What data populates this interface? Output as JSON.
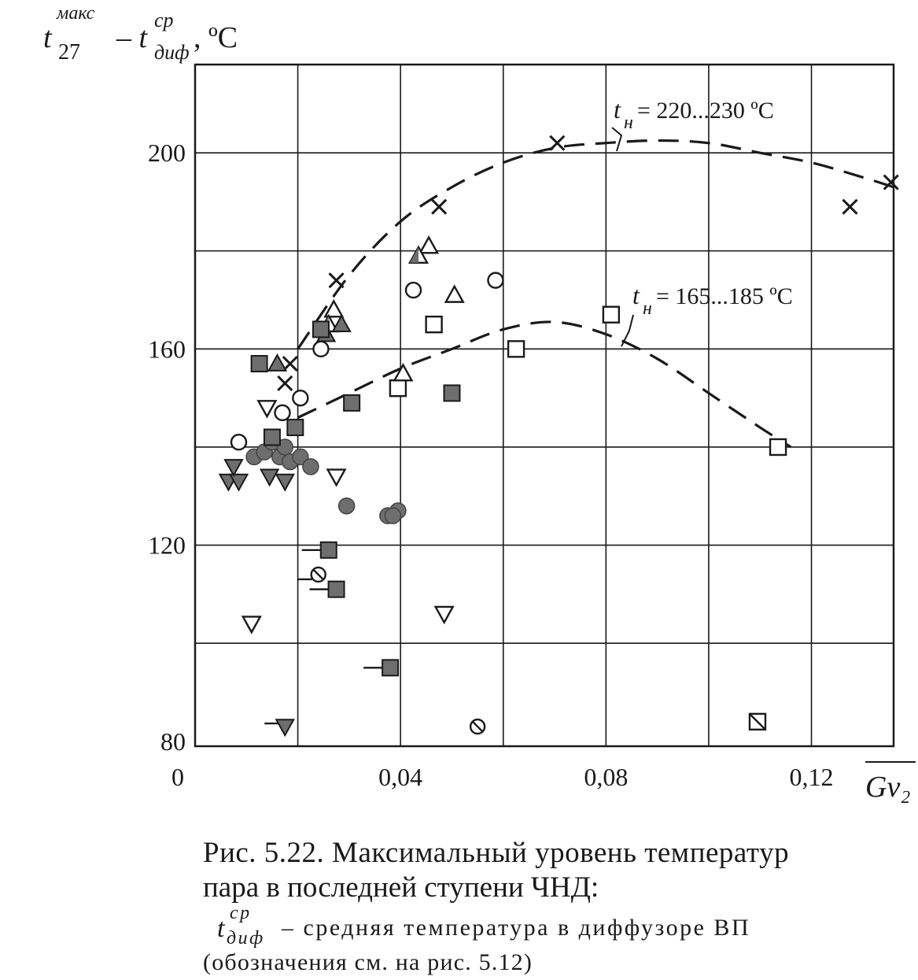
{
  "chart_data": {
    "type": "scatter",
    "ylabel": {
      "base": "t",
      "sub": "27",
      "sup": "макс",
      "minus": "– t",
      "sub2": "диф",
      "sup2": "ср",
      "unit": ", ºС"
    },
    "xlabel": "Gv₂",
    "origin_label": "0",
    "xlim": [
      0,
      0.136
    ],
    "ylim": [
      79,
      218
    ],
    "x_ticks": [
      {
        "v": 0.04,
        "label": "0,04"
      },
      {
        "v": 0.08,
        "label": "0,08"
      },
      {
        "v": 0.12,
        "label": "0,12"
      }
    ],
    "y_ticks": [
      {
        "v": 80,
        "label": "80"
      },
      {
        "v": 120,
        "label": "120"
      },
      {
        "v": 160,
        "label": "160"
      },
      {
        "v": 200,
        "label": "200"
      }
    ],
    "x_grid": [
      0.02,
      0.04,
      0.06,
      0.08,
      0.1,
      0.12
    ],
    "y_grid": [
      100,
      120,
      140,
      160,
      180,
      200
    ],
    "curves": [
      {
        "label": "t_н = 220...230 ºС",
        "label_parts": {
          "t": "t",
          "sub": "н",
          "rest": " = 220...230 ºС"
        },
        "x": [
          0.02,
          0.03,
          0.04,
          0.05,
          0.06,
          0.07,
          0.08,
          0.09,
          0.1,
          0.11,
          0.12,
          0.13,
          0.136
        ],
        "y": [
          160,
          175,
          186,
          193,
          198,
          201,
          202,
          202.5,
          202,
          200,
          198,
          195,
          193
        ]
      },
      {
        "label": "t_н = 165...185 ºС",
        "label_parts": {
          "t": "t",
          "sub": "н",
          "rest": " = 165...185 ºС"
        },
        "x": [
          0.02,
          0.03,
          0.04,
          0.05,
          0.06,
          0.07,
          0.08,
          0.09,
          0.1,
          0.11,
          0.116
        ],
        "y": [
          146,
          151,
          156,
          160,
          164,
          165.5,
          163,
          158,
          151,
          144,
          140
        ]
      }
    ],
    "points": [
      {
        "m": "x",
        "x": 0.0175,
        "y": 153
      },
      {
        "m": "x",
        "x": 0.0185,
        "y": 157
      },
      {
        "m": "x",
        "x": 0.0275,
        "y": 174
      },
      {
        "m": "x",
        "x": 0.0475,
        "y": 189
      },
      {
        "m": "x",
        "x": 0.0705,
        "y": 202
      },
      {
        "m": "x",
        "x": 0.1275,
        "y": 189
      },
      {
        "m": "x",
        "x": 0.1355,
        "y": 194
      },
      {
        "m": "o",
        "x": 0.0085,
        "y": 141
      },
      {
        "m": "o",
        "x": 0.017,
        "y": 147
      },
      {
        "m": "o",
        "x": 0.0205,
        "y": 150
      },
      {
        "m": "o",
        "x": 0.0245,
        "y": 160
      },
      {
        "m": "o",
        "x": 0.0425,
        "y": 172
      },
      {
        "m": "o",
        "x": 0.0585,
        "y": 174
      },
      {
        "m": "sq",
        "x": 0.0395,
        "y": 152
      },
      {
        "m": "sq",
        "x": 0.0465,
        "y": 165
      },
      {
        "m": "sq",
        "x": 0.0625,
        "y": 160
      },
      {
        "m": "sq",
        "x": 0.081,
        "y": 167
      },
      {
        "m": "sq",
        "x": 0.1135,
        "y": 140
      },
      {
        "m": "tri",
        "x": 0.027,
        "y": 168
      },
      {
        "m": "tri",
        "x": 0.0405,
        "y": 155
      },
      {
        "m": "tri",
        "x": 0.0455,
        "y": 181
      },
      {
        "m": "tri",
        "x": 0.0505,
        "y": 171
      },
      {
        "m": "tri_half",
        "x": 0.026,
        "y": 165
      },
      {
        "m": "tri_half",
        "x": 0.0435,
        "y": 179
      },
      {
        "m": "tri_fill",
        "x": 0.016,
        "y": 157
      },
      {
        "m": "tri_fill",
        "x": 0.0255,
        "y": 163
      },
      {
        "m": "tri_fill",
        "x": 0.0285,
        "y": 165
      },
      {
        "m": "invtri",
        "x": 0.014,
        "y": 148
      },
      {
        "m": "invtri",
        "x": 0.0275,
        "y": 134
      },
      {
        "m": "invtri",
        "x": 0.011,
        "y": 104
      },
      {
        "m": "invtri",
        "x": 0.0485,
        "y": 106
      },
      {
        "m": "invtri_fill",
        "x": 0.0065,
        "y": 133
      },
      {
        "m": "invtri_fill",
        "x": 0.0085,
        "y": 133
      },
      {
        "m": "invtri_fill",
        "x": 0.0075,
        "y": 136
      },
      {
        "m": "invtri_fill",
        "x": 0.0145,
        "y": 134
      },
      {
        "m": "invtri_fill",
        "x": 0.0175,
        "y": 133
      },
      {
        "m": "invtri_flag",
        "x": 0.0175,
        "y": 83
      },
      {
        "m": "dot",
        "x": 0.0115,
        "y": 138
      },
      {
        "m": "dot",
        "x": 0.0135,
        "y": 139
      },
      {
        "m": "dot",
        "x": 0.015,
        "y": 141
      },
      {
        "m": "dot",
        "x": 0.0165,
        "y": 138
      },
      {
        "m": "dot",
        "x": 0.0175,
        "y": 140
      },
      {
        "m": "dot",
        "x": 0.0185,
        "y": 137
      },
      {
        "m": "dot",
        "x": 0.0205,
        "y": 138
      },
      {
        "m": "dot",
        "x": 0.0225,
        "y": 136
      },
      {
        "m": "dot",
        "x": 0.0295,
        "y": 128
      },
      {
        "m": "dot",
        "x": 0.0375,
        "y": 126
      },
      {
        "m": "dot",
        "x": 0.0395,
        "y": 127
      },
      {
        "m": "dot",
        "x": 0.0385,
        "y": 126
      },
      {
        "m": "fsq",
        "x": 0.0125,
        "y": 157
      },
      {
        "m": "fsq",
        "x": 0.015,
        "y": 142
      },
      {
        "m": "fsq",
        "x": 0.0195,
        "y": 144
      },
      {
        "m": "fsq",
        "x": 0.0245,
        "y": 164
      },
      {
        "m": "fsq",
        "x": 0.0305,
        "y": 149
      },
      {
        "m": "fsq",
        "x": 0.05,
        "y": 151
      },
      {
        "m": "fsq_flag",
        "x": 0.026,
        "y": 119
      },
      {
        "m": "fsq_flag",
        "x": 0.0275,
        "y": 111
      },
      {
        "m": "fsq_flag",
        "x": 0.038,
        "y": 95
      },
      {
        "m": "osl_flag",
        "x": 0.024,
        "y": 114
      },
      {
        "m": "osl",
        "x": 0.055,
        "y": 83
      },
      {
        "m": "sqx",
        "x": 0.1095,
        "y": 84
      }
    ]
  },
  "caption": {
    "line1": "Рис. 5.22. Максимальный уровень температур",
    "line2": "пара в последней ступени ЧНД:",
    "sym_t": "t",
    "sym_sup": "ср",
    "sym_sub": "диф",
    "line3_rest": "– средняя температура в диффузоре ВП",
    "line4": "(обозначения см. на рис. 5.12)"
  },
  "colors": {
    "ink": "#1a1a1a",
    "marker_fill": "#6e6e6e",
    "background": "#ffffff"
  }
}
